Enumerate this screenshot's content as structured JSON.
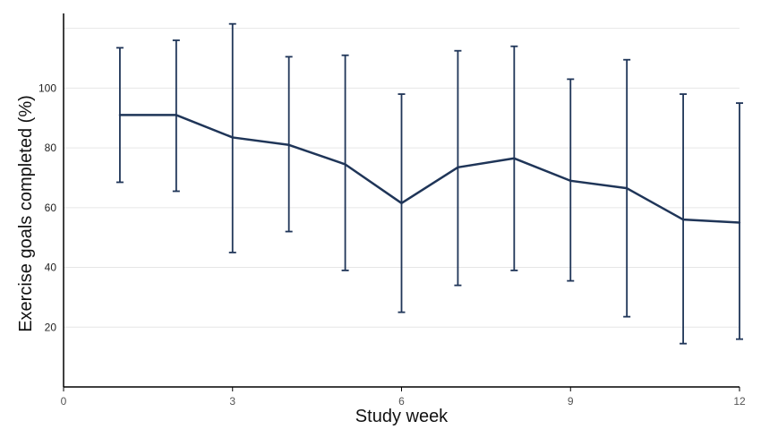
{
  "chart_data": {
    "type": "line",
    "title": "",
    "xlabel": "Study week",
    "ylabel": "Exercise goals completed (%)",
    "xlim": [
      0,
      12
    ],
    "ylim": [
      0,
      125
    ],
    "x_ticks": [
      0,
      3,
      6,
      9,
      12
    ],
    "y_ticks": [
      20,
      40,
      60,
      80,
      100
    ],
    "grid": "horizontal",
    "colors": {
      "series": "#1f3558"
    },
    "series": [
      {
        "x": [
          1,
          2,
          3,
          4,
          5,
          6,
          7,
          8,
          9,
          10,
          11,
          12
        ],
        "values": [
          91,
          91,
          83.5,
          81,
          74.5,
          61.5,
          73.5,
          76.5,
          69,
          66.5,
          56,
          55
        ],
        "error_upper": [
          113.5,
          116,
          121.5,
          110.5,
          111,
          98,
          112.5,
          114,
          103,
          109.5,
          98,
          95
        ],
        "error_lower": [
          68.5,
          65.5,
          45,
          52,
          39,
          25,
          34,
          39,
          35.5,
          23.5,
          14.5,
          16
        ]
      }
    ]
  }
}
